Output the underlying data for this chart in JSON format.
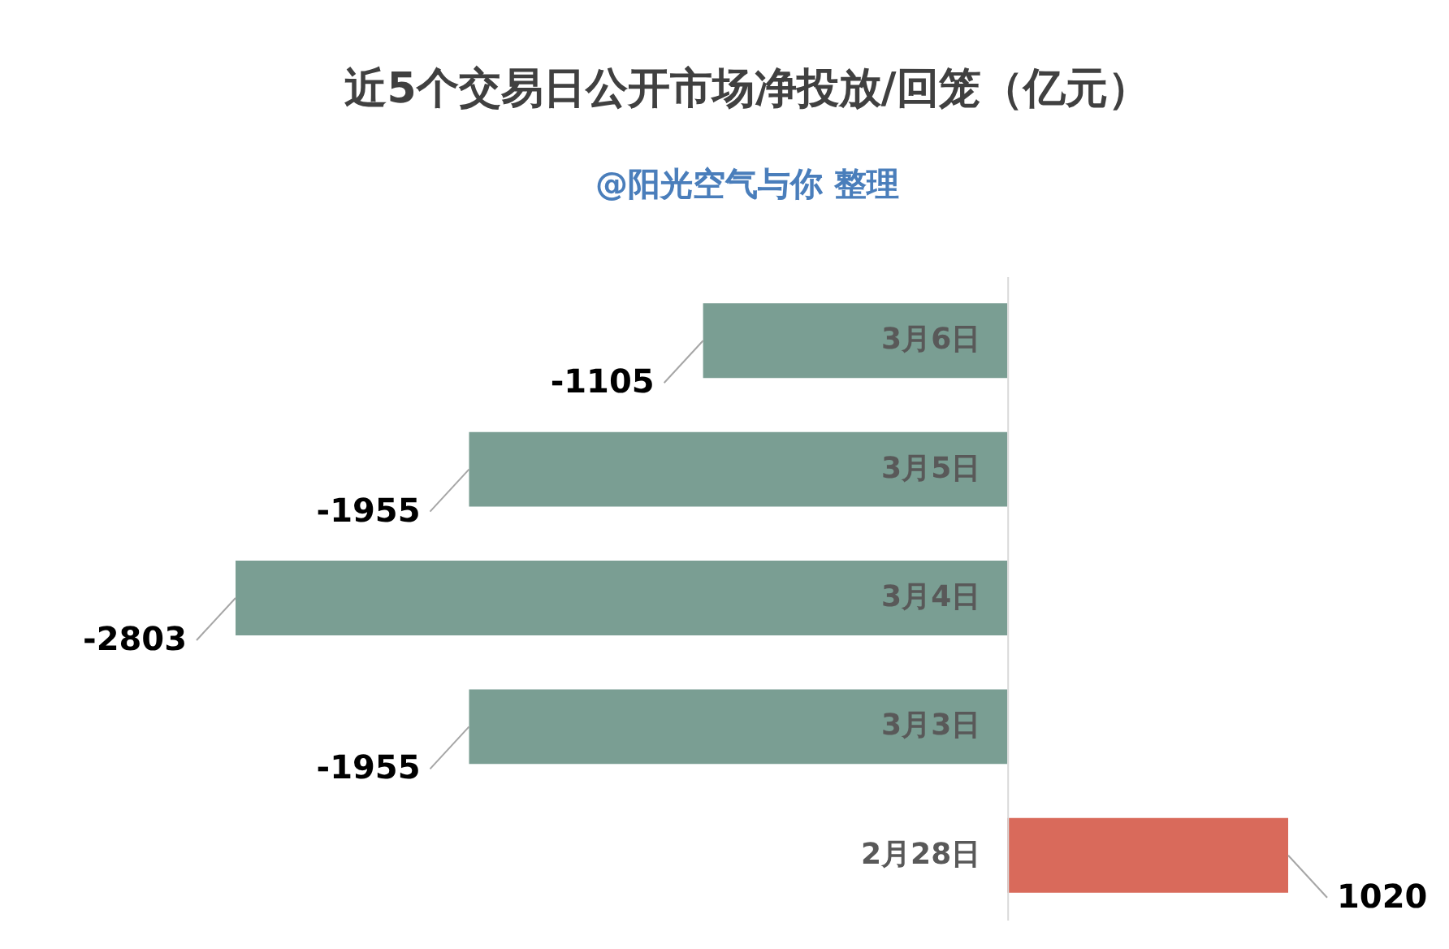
{
  "chart_data": {
    "type": "bar",
    "orientation": "horizontal",
    "title": "近5个交易日公开市场净投放/回笼（亿元）",
    "subtitle": "@阳光空气与你 整理",
    "categories": [
      "3月6日",
      "3月5日",
      "3月4日",
      "3月3日",
      "2月28日"
    ],
    "values": [
      -1105,
      -1955,
      -2803,
      -1955,
      1020
    ],
    "colors": [
      "#7a9e93",
      "#7a9e93",
      "#7a9e93",
      "#7a9e93",
      "#d96a5b"
    ],
    "data_labels": true
  }
}
